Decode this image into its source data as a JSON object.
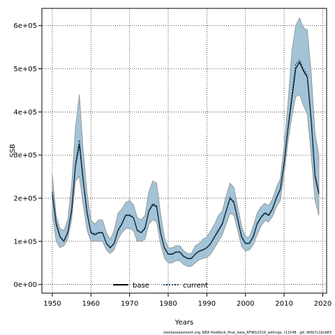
{
  "chart_data": {
    "type": "line",
    "title": "",
    "xlabel": "Years",
    "ylabel": "SSB",
    "xlim": [
      1947.3,
      2021.0
    ],
    "ylim": [
      -20000,
      640000
    ],
    "x_ticks": [
      1950,
      1960,
      1970,
      1980,
      1990,
      2000,
      2010,
      2020
    ],
    "x_tick_labels": [
      "1950",
      "1960",
      "1970",
      "1980",
      "1990",
      "2000",
      "2010",
      "2020"
    ],
    "y_ticks": [
      0,
      100000,
      200000,
      300000,
      400000,
      500000,
      600000
    ],
    "y_tick_labels": [
      "0e+00",
      "1e+05",
      "2e+05",
      "3e+05",
      "4e+05",
      "5e+05",
      "6e+05"
    ],
    "grid": true,
    "legend_position": "bottom-center",
    "colors": {
      "band": "#a3c4d6",
      "band_edge": "#8c8c8c",
      "base": "#000000",
      "current": "#1f4e79"
    },
    "series": [
      {
        "name": "base",
        "style": "solid",
        "x": [
          1950,
          1951,
          1952,
          1953,
          1954,
          1955,
          1956,
          1957,
          1958,
          1959,
          1960,
          1961,
          1962,
          1963,
          1964,
          1965,
          1966,
          1967,
          1968,
          1969,
          1970,
          1971,
          1972,
          1973,
          1974,
          1975,
          1976,
          1977,
          1978,
          1979,
          1980,
          1981,
          1982,
          1983,
          1984,
          1985,
          1986,
          1987,
          1988,
          1989,
          1990,
          1991,
          1992,
          1993,
          1994,
          1995,
          1996,
          1997,
          1998,
          1999,
          2000,
          2001,
          2002,
          2003,
          2004,
          2005,
          2006,
          2007,
          2008,
          2009,
          2010,
          2011,
          2012,
          2013,
          2014,
          2015,
          2016,
          2017,
          2018,
          2019
        ],
        "y": [
          210000,
          140000,
          110000,
          100000,
          120000,
          170000,
          275000,
          325000,
          240000,
          165000,
          120000,
          115000,
          120000,
          120000,
          95000,
          85000,
          95000,
          125000,
          140000,
          160000,
          160000,
          155000,
          125000,
          120000,
          130000,
          170000,
          185000,
          180000,
          120000,
          85000,
          70000,
          70000,
          75000,
          75000,
          65000,
          60000,
          60000,
          70000,
          77000,
          80000,
          85000,
          95000,
          110000,
          125000,
          140000,
          170000,
          200000,
          190000,
          150000,
          110000,
          95000,
          95000,
          110000,
          140000,
          155000,
          165000,
          160000,
          175000,
          200000,
          220000,
          280000,
          360000,
          430000,
          500000,
          515000,
          495000,
          480000,
          380000,
          250000,
          210000
        ]
      },
      {
        "name": "current",
        "style": "dotted",
        "x": [
          1950,
          1951,
          1952,
          1953,
          1954,
          1955,
          1956,
          1957,
          1958,
          1959,
          1960,
          1961,
          1962,
          1963,
          1964,
          1965,
          1966,
          1967,
          1968,
          1969,
          1970,
          1971,
          1972,
          1973,
          1974,
          1975,
          1976,
          1977,
          1978,
          1979,
          1980,
          1981,
          1982,
          1983,
          1984,
          1985,
          1986,
          1987,
          1988,
          1989,
          1990,
          1991,
          1992,
          1993,
          1994,
          1995,
          1996,
          1997,
          1998,
          1999,
          2000,
          2001,
          2002,
          2003,
          2004,
          2005,
          2006,
          2007,
          2008,
          2009,
          2010,
          2011,
          2012,
          2013,
          2014,
          2015,
          2016,
          2017,
          2018,
          2019
        ],
        "y": [
          215000,
          145000,
          112000,
          102000,
          122000,
          175000,
          280000,
          335000,
          245000,
          168000,
          122000,
          117000,
          121000,
          121000,
          96000,
          86000,
          96000,
          127000,
          142000,
          162000,
          162000,
          156000,
          126000,
          121000,
          132000,
          172000,
          188000,
          182000,
          122000,
          86000,
          71000,
          71000,
          76000,
          76000,
          66000,
          61000,
          61000,
          71000,
          78000,
          81000,
          86000,
          96000,
          112000,
          127000,
          142000,
          172000,
          202000,
          192000,
          152000,
          112000,
          96000,
          96000,
          112000,
          142000,
          157000,
          167000,
          162000,
          177000,
          202000,
          222000,
          285000,
          365000,
          440000,
          510000,
          520000,
          500000,
          485000,
          385000,
          255000,
          215000
        ]
      }
    ],
    "band": {
      "x": [
        1950,
        1951,
        1952,
        1953,
        1954,
        1955,
        1956,
        1957,
        1958,
        1959,
        1960,
        1961,
        1962,
        1963,
        1964,
        1965,
        1966,
        1967,
        1968,
        1969,
        1970,
        1971,
        1972,
        1973,
        1974,
        1975,
        1976,
        1977,
        1978,
        1979,
        1980,
        1981,
        1982,
        1983,
        1984,
        1985,
        1986,
        1987,
        1988,
        1989,
        1990,
        1991,
        1992,
        1993,
        1994,
        1995,
        1996,
        1997,
        1998,
        1999,
        2000,
        2001,
        2002,
        2003,
        2004,
        2005,
        2006,
        2007,
        2008,
        2009,
        2010,
        2011,
        2012,
        2013,
        2014,
        2015,
        2016,
        2017,
        2018,
        2019
      ],
      "upper": [
        255000,
        160000,
        130000,
        125000,
        150000,
        230000,
        365000,
        440000,
        310000,
        210000,
        150000,
        140000,
        150000,
        150000,
        120000,
        105000,
        125000,
        165000,
        175000,
        190000,
        195000,
        185000,
        155000,
        150000,
        160000,
        215000,
        240000,
        235000,
        165000,
        110000,
        85000,
        85000,
        90000,
        90000,
        78000,
        72000,
        72000,
        90000,
        95000,
        105000,
        110000,
        125000,
        140000,
        160000,
        170000,
        205000,
        235000,
        225000,
        180000,
        135000,
        110000,
        110000,
        135000,
        165000,
        180000,
        188000,
        183000,
        198000,
        225000,
        245000,
        320000,
        420000,
        540000,
        600000,
        618000,
        595000,
        590000,
        490000,
        350000,
        300000
      ],
      "lower": [
        165000,
        100000,
        85000,
        90000,
        105000,
        150000,
        240000,
        250000,
        185000,
        125000,
        100000,
        100000,
        100000,
        100000,
        80000,
        72000,
        80000,
        105000,
        120000,
        130000,
        130000,
        125000,
        100000,
        100000,
        105000,
        140000,
        150000,
        145000,
        95000,
        62000,
        50000,
        50000,
        55000,
        55000,
        46000,
        42000,
        42000,
        50000,
        57000,
        60000,
        63000,
        70000,
        85000,
        100000,
        115000,
        140000,
        165000,
        160000,
        125000,
        88000,
        78000,
        80000,
        92000,
        115000,
        135000,
        148000,
        145000,
        158000,
        180000,
        195000,
        255000,
        330000,
        390000,
        435000,
        440000,
        415000,
        395000,
        300000,
        195000,
        160000
      ]
    },
    "legend": [
      "base",
      "current"
    ],
    "footer": "stockassessment.org, NEA Haddock_final_data_AFWG2019_settings, r11548 , git: df0b7c1bcb83"
  }
}
